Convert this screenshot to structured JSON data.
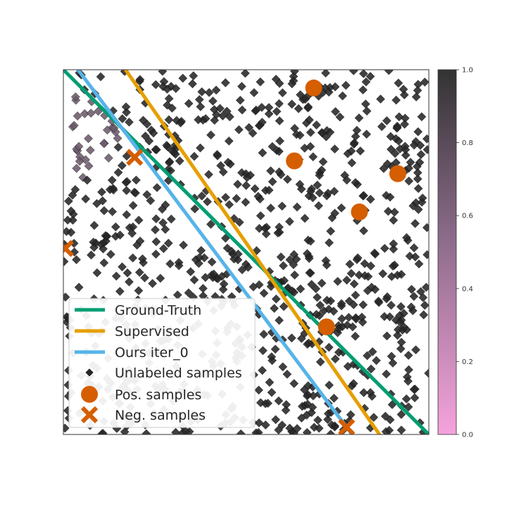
{
  "chart_data": {
    "type": "scatter",
    "title": "",
    "xlabel": "",
    "ylabel": "",
    "xlim": [
      0,
      1
    ],
    "ylim": [
      0,
      1
    ],
    "grid": false,
    "legend_placement": "lower-left",
    "lines": [
      {
        "name": "Ground-Truth",
        "color": "#009E73",
        "x": [
          0.0,
          1.0
        ],
        "y": [
          1.0,
          0.0
        ]
      },
      {
        "name": "Supervised",
        "color": "#E69F00",
        "x": [
          0.17,
          0.865
        ],
        "y": [
          1.0,
          0.0
        ]
      },
      {
        "name": "Ours iter_0",
        "color": "#56B4E9",
        "x": [
          0.04,
          0.79
        ],
        "y": [
          1.0,
          0.0
        ]
      }
    ],
    "unlabeled": {
      "name": "Unlabeled samples",
      "marker": "diamond",
      "color": "#262626",
      "count": 900
    },
    "positive": {
      "name": "Pos. samples",
      "marker": "circle",
      "color": "#D55E00",
      "x": [
        0.685,
        0.632,
        0.915,
        0.81,
        0.72
      ],
      "y": [
        0.95,
        0.75,
        0.715,
        0.61,
        0.295
      ]
    },
    "negative": {
      "name": "Neg. samples",
      "marker": "x",
      "color": "#D55E00",
      "x": [
        0.195,
        0.005,
        0.775
      ],
      "y": [
        0.76,
        0.51,
        0.02
      ]
    },
    "colorbar": {
      "ticks": [
        "0.0",
        "0.2",
        "0.4",
        "0.6",
        "0.8",
        "1.0"
      ],
      "range": [
        0,
        1
      ],
      "color_low": "#f5a3dc",
      "color_mid": "#8a6a88",
      "color_high": "#333333"
    }
  }
}
